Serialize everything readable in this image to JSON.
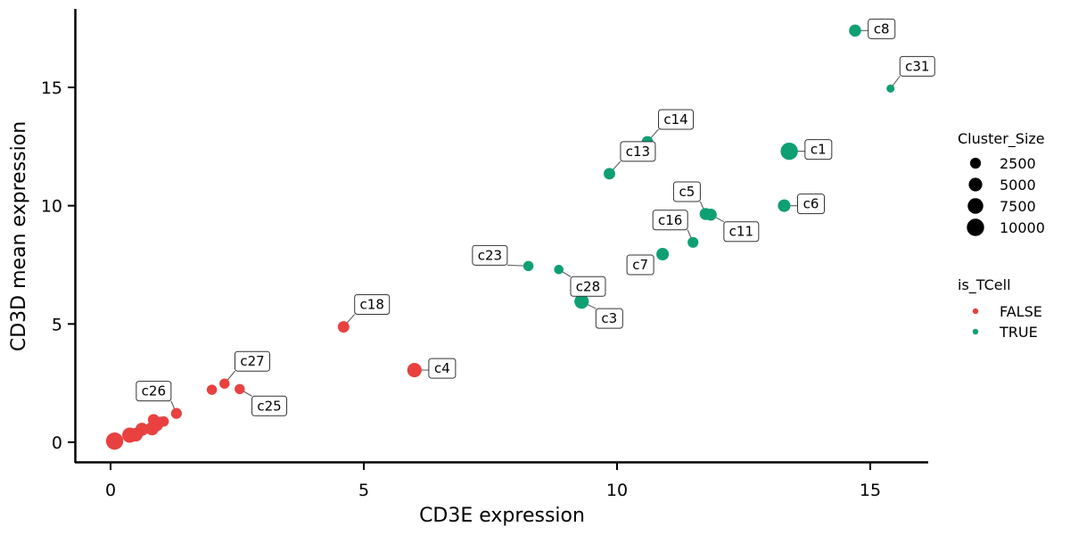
{
  "chart_data": {
    "type": "scatter",
    "xlabel": "CD3E expression",
    "ylabel": "CD3D mean expression",
    "xlim": [
      -0.7,
      16.2
    ],
    "ylim": [
      -0.85,
      18.3
    ],
    "xticks": [
      0,
      5,
      10,
      15
    ],
    "yticks": [
      0,
      5,
      10,
      15
    ],
    "grid": false,
    "colors": {
      "FALSE": "#E8413F",
      "TRUE": "#0E9F73"
    },
    "legend": {
      "position": "right",
      "size_title": "Cluster_Size",
      "size_entries": [
        {
          "label": "2500",
          "value": 2500
        },
        {
          "label": "5000",
          "value": 5000
        },
        {
          "label": "7500",
          "value": 7500
        },
        {
          "label": "10000",
          "value": 10000
        }
      ],
      "color_title": "is_TCell",
      "color_entries": [
        {
          "label": "FALSE",
          "key": "FALSE"
        },
        {
          "label": "TRUE",
          "key": "TRUE"
        }
      ]
    },
    "points": [
      {
        "label": "c8",
        "x": 14.7,
        "y": 17.4,
        "size": 3500,
        "tcell": "TRUE",
        "label_pos": "right"
      },
      {
        "label": "c31",
        "x": 15.4,
        "y": 14.95,
        "size": 800,
        "tcell": "TRUE",
        "label_pos": "above-right"
      },
      {
        "label": "c1",
        "x": 13.4,
        "y": 12.3,
        "size": 10000,
        "tcell": "TRUE",
        "label_pos": "right"
      },
      {
        "label": "c6",
        "x": 13.3,
        "y": 10.0,
        "size": 4000,
        "tcell": "TRUE",
        "label_pos": "right"
      },
      {
        "label": "c14",
        "x": 10.6,
        "y": 12.7,
        "size": 3000,
        "tcell": "TRUE",
        "label_pos": "above-right"
      },
      {
        "label": "c13",
        "x": 9.85,
        "y": 11.35,
        "size": 3000,
        "tcell": "TRUE",
        "label_pos": "above-right"
      },
      {
        "label": "c5",
        "x": 11.75,
        "y": 9.65,
        "size": 3500,
        "tcell": "TRUE",
        "label_pos": "above-left"
      },
      {
        "label": "c11",
        "x": 11.85,
        "y": 9.62,
        "size": 3500,
        "tcell": "TRUE",
        "label_pos": "below-right"
      },
      {
        "label": "c16",
        "x": 11.5,
        "y": 8.45,
        "size": 2500,
        "tcell": "TRUE",
        "label_pos": "above-left"
      },
      {
        "label": "c7",
        "x": 10.9,
        "y": 7.95,
        "size": 4000,
        "tcell": "TRUE",
        "label_pos": "below-left"
      },
      {
        "label": "c23",
        "x": 8.25,
        "y": 7.45,
        "size": 2000,
        "tcell": "TRUE",
        "label_pos": "left"
      },
      {
        "label": "c28",
        "x": 8.85,
        "y": 7.3,
        "size": 1500,
        "tcell": "TRUE",
        "label_pos": "below-right"
      },
      {
        "label": "c3",
        "x": 9.3,
        "y": 5.95,
        "size": 6000,
        "tcell": "TRUE",
        "label_pos": "below-right"
      },
      {
        "label": "c18",
        "x": 4.6,
        "y": 4.88,
        "size": 3000,
        "tcell": "FALSE",
        "label_pos": "above-right"
      },
      {
        "label": "c4",
        "x": 6.0,
        "y": 3.05,
        "size": 6000,
        "tcell": "FALSE",
        "label_pos": "right"
      },
      {
        "label": "c27",
        "x": 2.25,
        "y": 2.48,
        "size": 2000,
        "tcell": "FALSE",
        "label_pos": "above-right"
      },
      {
        "label": "c25",
        "x": 2.55,
        "y": 2.25,
        "size": 2000,
        "tcell": "FALSE",
        "label_pos": "below-right"
      },
      {
        "label": "c26",
        "x": 1.3,
        "y": 1.22,
        "size": 2500,
        "tcell": "FALSE",
        "label_pos": "above-left"
      },
      {
        "label": "",
        "x": 2.0,
        "y": 2.22,
        "size": 2000,
        "tcell": "FALSE"
      },
      {
        "label": "",
        "x": 0.08,
        "y": 0.05,
        "size": 10000,
        "tcell": "FALSE"
      },
      {
        "label": "",
        "x": 0.38,
        "y": 0.3,
        "size": 7000,
        "tcell": "FALSE"
      },
      {
        "label": "",
        "x": 0.5,
        "y": 0.32,
        "size": 5000,
        "tcell": "FALSE"
      },
      {
        "label": "",
        "x": 0.62,
        "y": 0.55,
        "size": 4500,
        "tcell": "FALSE"
      },
      {
        "label": "",
        "x": 0.82,
        "y": 0.58,
        "size": 5000,
        "tcell": "FALSE"
      },
      {
        "label": "",
        "x": 0.92,
        "y": 0.72,
        "size": 3000,
        "tcell": "FALSE"
      },
      {
        "label": "",
        "x": 0.85,
        "y": 0.95,
        "size": 3000,
        "tcell": "FALSE"
      },
      {
        "label": "",
        "x": 0.98,
        "y": 0.85,
        "size": 2500,
        "tcell": "FALSE"
      },
      {
        "label": "",
        "x": 1.05,
        "y": 0.88,
        "size": 2000,
        "tcell": "FALSE"
      }
    ]
  }
}
